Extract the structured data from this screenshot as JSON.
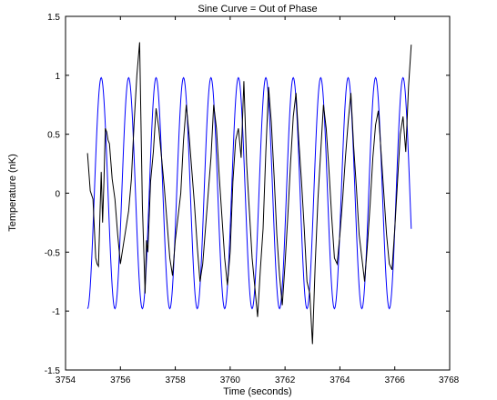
{
  "chart_data": {
    "type": "line",
    "title": "Sine Curve = Out of Phase",
    "xlabel": "Time (seconds)",
    "ylabel": "Temperature (nK)",
    "xlim": [
      3754,
      3768
    ],
    "ylim": [
      -1.5,
      1.5
    ],
    "xticks": [
      3754,
      3756,
      3758,
      3760,
      3762,
      3764,
      3766,
      3768
    ],
    "yticks": [
      -1.5,
      -1,
      -0.5,
      0,
      0.5,
      1,
      1.5
    ],
    "xtick_labels": [
      "3754",
      "3756",
      "3758",
      "3760",
      "3762",
      "3764",
      "3766",
      "3768"
    ],
    "ytick_labels": [
      "-1.5",
      "-1",
      "-0.5",
      "0",
      "0.5",
      "1",
      "1.5"
    ],
    "grid": false,
    "series": [
      {
        "color": "#0000ff",
        "sine": {
          "x_start": 3754.8,
          "x_end": 3766.6,
          "amplitude": 0.98,
          "period": 1.0,
          "first_peak": 3755.3
        }
      },
      {
        "color": "#000000",
        "x": [
          3754.8,
          3754.9,
          3755.0,
          3755.1,
          3755.15,
          3755.2,
          3755.3,
          3755.35,
          3755.4,
          3755.45,
          3755.5,
          3755.55,
          3755.6,
          3755.7,
          3755.8,
          3755.9,
          3756.0,
          3756.1,
          3756.2,
          3756.3,
          3756.4,
          3756.5,
          3756.6,
          3756.7,
          3756.8,
          3756.9,
          3756.95,
          3757.0,
          3757.1,
          3757.2,
          3757.3,
          3757.4,
          3757.5,
          3757.6,
          3757.7,
          3757.8,
          3757.9,
          3758.0,
          3758.1,
          3758.2,
          3758.3,
          3758.4,
          3758.5,
          3758.6,
          3758.7,
          3758.8,
          3758.9,
          3759.0,
          3759.1,
          3759.2,
          3759.3,
          3759.4,
          3759.5,
          3759.6,
          3759.7,
          3759.8,
          3759.9,
          3760.0,
          3760.1,
          3760.2,
          3760.3,
          3760.4,
          3760.5,
          3760.6,
          3760.7,
          3760.8,
          3760.9,
          3761.0,
          3761.1,
          3761.2,
          3761.3,
          3761.4,
          3761.5,
          3761.6,
          3761.7,
          3761.8,
          3761.9,
          3762.0,
          3762.1,
          3762.2,
          3762.3,
          3762.4,
          3762.5,
          3762.6,
          3762.7,
          3762.8,
          3762.9,
          3763.0,
          3763.1,
          3763.2,
          3763.3,
          3763.4,
          3763.5,
          3763.6,
          3763.7,
          3763.8,
          3763.9,
          3764.0,
          3764.1,
          3764.2,
          3764.3,
          3764.4,
          3764.5,
          3764.6,
          3764.7,
          3764.8,
          3764.9,
          3765.0,
          3765.1,
          3765.2,
          3765.3,
          3765.4,
          3765.5,
          3765.6,
          3765.7,
          3765.8,
          3765.9,
          3766.0,
          3766.1,
          3766.2,
          3766.3,
          3766.4,
          3766.5,
          3766.6
        ],
        "y": [
          0.34,
          0.02,
          -0.05,
          -0.55,
          -0.6,
          -0.62,
          0.18,
          -0.25,
          0.1,
          0.55,
          0.52,
          0.45,
          0.42,
          0.12,
          -0.05,
          -0.35,
          -0.6,
          -0.45,
          -0.3,
          -0.15,
          0.12,
          0.6,
          1.0,
          1.28,
          -0.1,
          -0.85,
          -0.4,
          -0.5,
          0.1,
          0.35,
          0.72,
          0.55,
          0.3,
          0.05,
          -0.25,
          -0.55,
          -0.7,
          -0.4,
          -0.2,
          0.0,
          0.45,
          0.75,
          0.5,
          0.2,
          -0.1,
          -0.45,
          -0.75,
          -0.6,
          -0.3,
          0.0,
          0.3,
          0.75,
          0.55,
          0.15,
          -0.2,
          -0.55,
          -0.78,
          -0.5,
          0.1,
          0.45,
          0.55,
          0.3,
          0.95,
          0.25,
          -0.15,
          -0.55,
          -0.8,
          -1.05,
          -0.65,
          -0.3,
          0.35,
          0.9,
          0.6,
          0.15,
          -0.35,
          -0.7,
          -0.95,
          -0.6,
          -0.2,
          0.25,
          0.65,
          0.85,
          0.45,
          0.1,
          -0.3,
          -0.75,
          -0.85,
          -1.28,
          -0.6,
          -0.05,
          0.35,
          0.75,
          0.55,
          0.2,
          -0.2,
          -0.55,
          -0.6,
          -0.35,
          -0.05,
          0.3,
          0.6,
          0.85,
          0.4,
          0.05,
          -0.35,
          -0.55,
          -0.75,
          -0.45,
          -0.1,
          0.3,
          0.58,
          0.7,
          0.35,
          0.0,
          -0.35,
          -0.6,
          -0.65,
          -0.3,
          0.1,
          0.5,
          0.65,
          0.35,
          0.9,
          1.26
        ]
      }
    ]
  }
}
